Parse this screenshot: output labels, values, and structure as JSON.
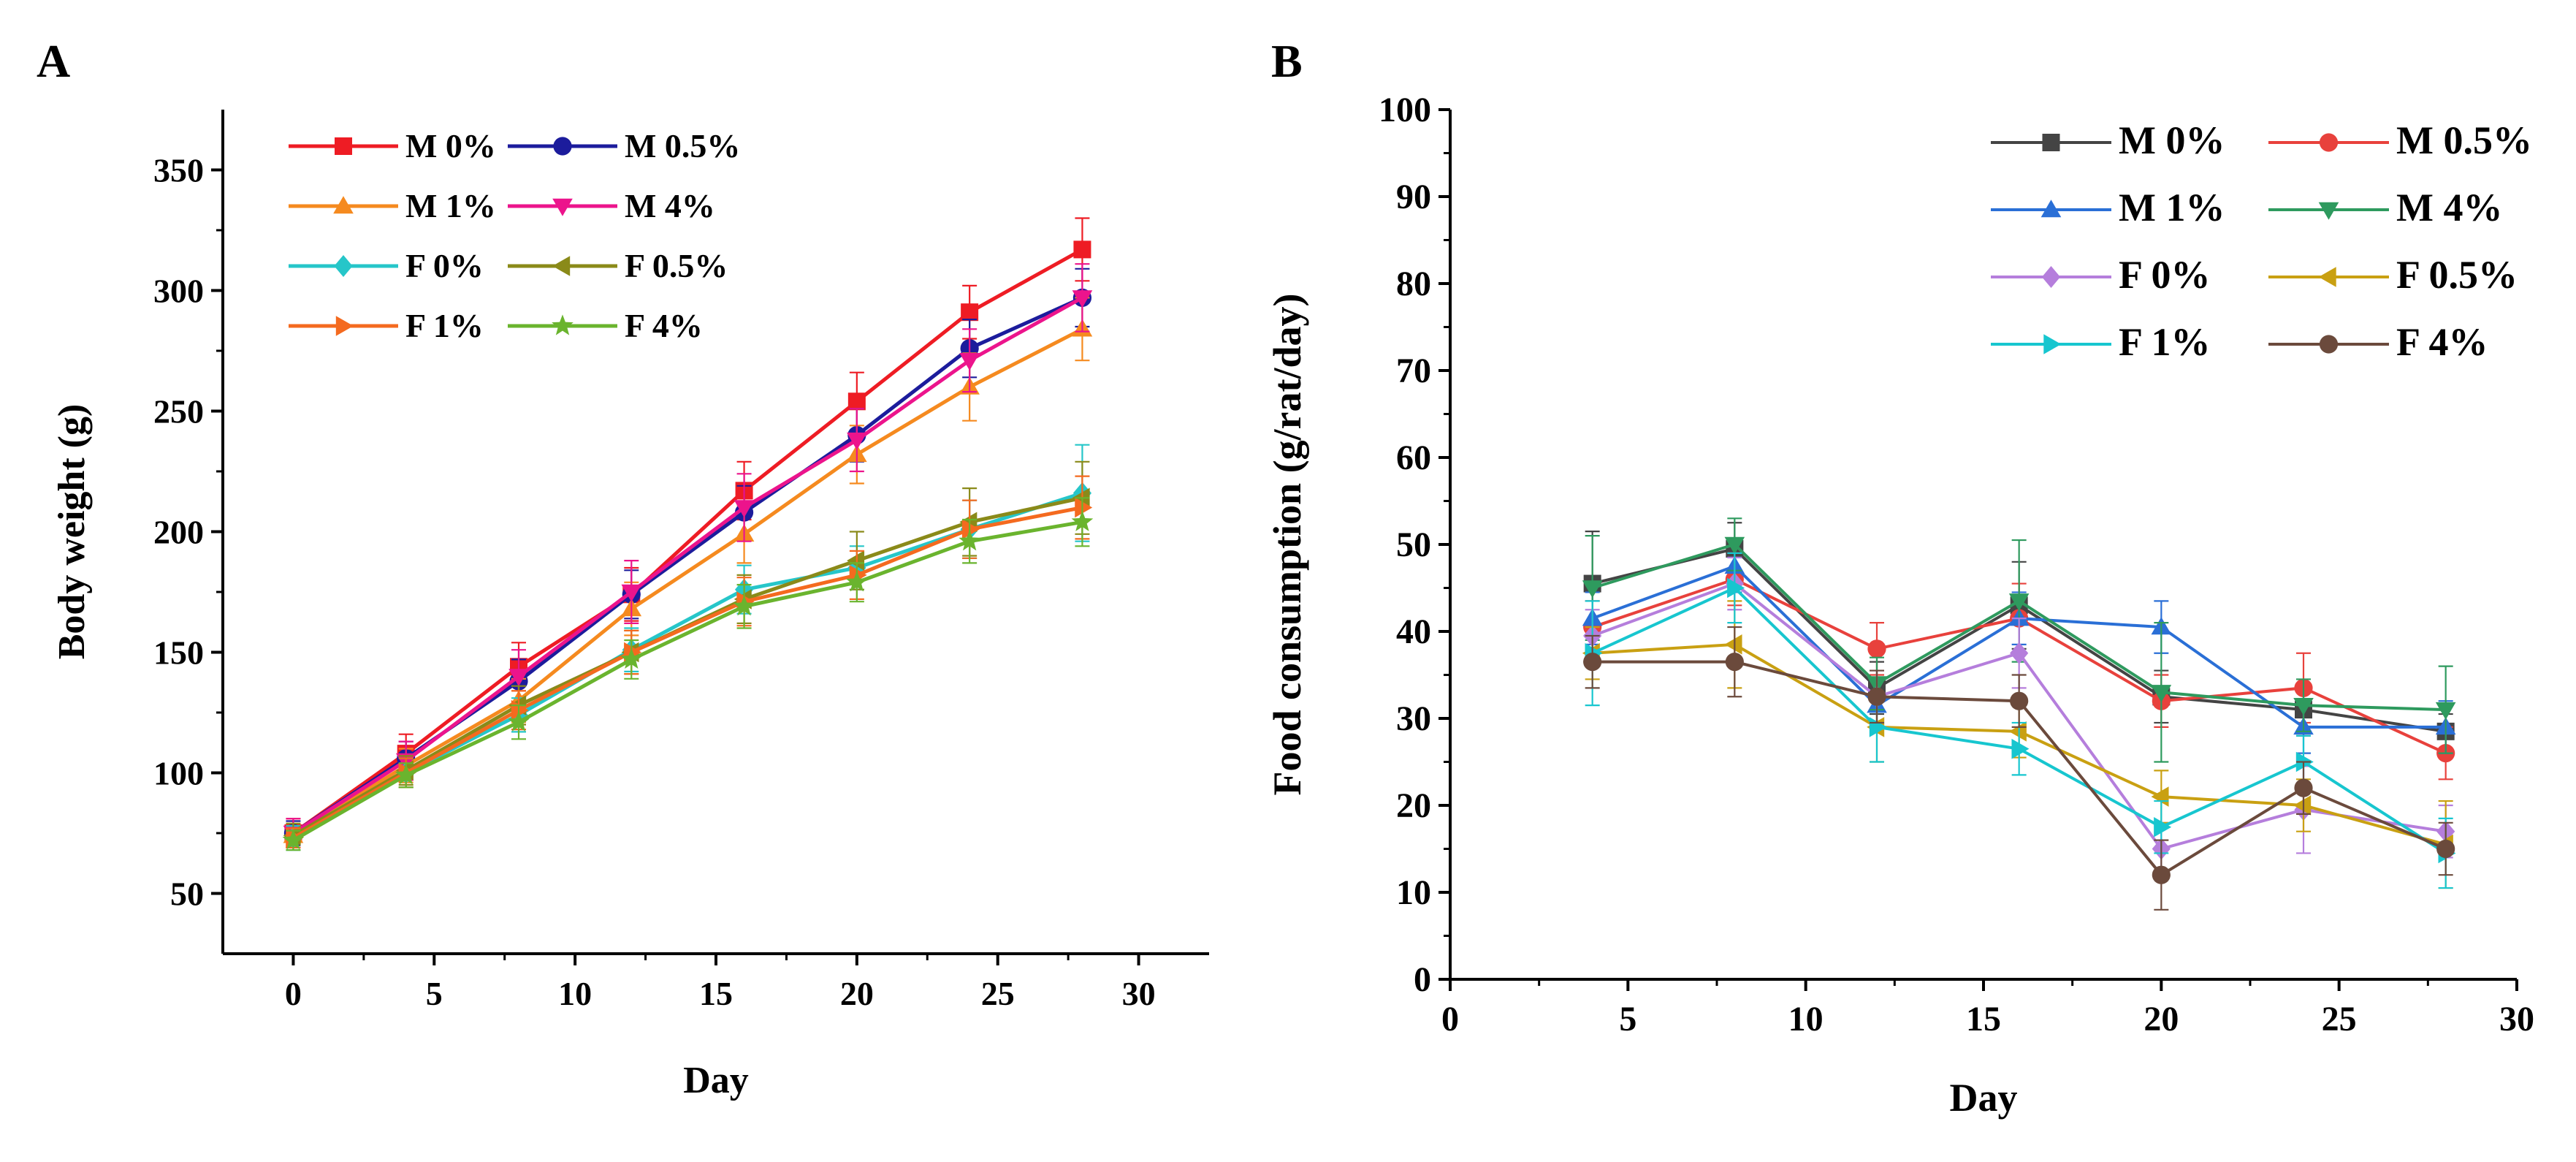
{
  "chart_data": [
    {
      "panel_label": "A",
      "type": "line",
      "title": "",
      "xlabel": "Day",
      "ylabel": "Body weight (g)",
      "xlim": [
        -2.5,
        32.5
      ],
      "ylim": [
        25,
        375
      ],
      "xticks": [
        0,
        5,
        10,
        15,
        20,
        25,
        30
      ],
      "yticks": [
        50,
        100,
        150,
        200,
        250,
        300,
        350
      ],
      "grid": false,
      "legend_position": "top-left",
      "x": [
        0,
        4,
        8,
        12,
        16,
        20,
        24,
        28
      ],
      "series": [
        {
          "name": "M 0%",
          "color": "#ee1c24",
          "marker": "square",
          "values": [
            75,
            108,
            144,
            174,
            217,
            254,
            291,
            317
          ],
          "err": [
            6,
            8,
            10,
            11,
            12,
            12,
            11,
            13
          ]
        },
        {
          "name": "M 0.5%",
          "color": "#1c1c9c",
          "marker": "circle",
          "values": [
            75,
            106,
            138,
            174,
            208,
            240,
            276,
            297
          ],
          "err": [
            5,
            7,
            9,
            10,
            11,
            11,
            12,
            12
          ]
        },
        {
          "name": "M 1%",
          "color": "#f58a1f",
          "marker": "triangle-up",
          "values": [
            74,
            103,
            130,
            168,
            199,
            232,
            260,
            284
          ],
          "err": [
            5,
            7,
            9,
            11,
            12,
            12,
            14,
            13
          ]
        },
        {
          "name": "M 4%",
          "color": "#ec148c",
          "marker": "triangle-down",
          "values": [
            75,
            105,
            140,
            175,
            210,
            238,
            271,
            297
          ],
          "err": [
            6,
            8,
            11,
            13,
            14,
            13,
            13,
            14
          ]
        },
        {
          "name": "F 0%",
          "color": "#26c6c9",
          "marker": "diamond",
          "values": [
            73,
            100,
            124,
            151,
            176,
            185,
            201,
            216
          ],
          "err": [
            5,
            6,
            7,
            9,
            10,
            9,
            12,
            20
          ]
        },
        {
          "name": "F 0.5%",
          "color": "#8a8a19",
          "marker": "triangle-left",
          "values": [
            74,
            101,
            128,
            150,
            172,
            188,
            204,
            214
          ],
          "err": [
            5,
            6,
            8,
            9,
            10,
            12,
            14,
            15
          ]
        },
        {
          "name": "F 1%",
          "color": "#f46a1f",
          "marker": "triangle-right",
          "values": [
            73,
            100,
            126,
            150,
            171,
            182,
            201,
            210
          ],
          "err": [
            4,
            6,
            8,
            9,
            10,
            10,
            12,
            13
          ]
        },
        {
          "name": "F 4%",
          "color": "#6ab42e",
          "marker": "star",
          "values": [
            72,
            99,
            121,
            147,
            169,
            179,
            196,
            204
          ],
          "err": [
            4,
            5,
            7,
            8,
            9,
            8,
            9,
            10
          ]
        }
      ]
    },
    {
      "panel_label": "B",
      "type": "line",
      "title": "",
      "xlabel": "Day",
      "ylabel": "Food consumption (g/rat/day)",
      "xlim": [
        0,
        30
      ],
      "ylim": [
        0,
        100
      ],
      "xticks": [
        0,
        5,
        10,
        15,
        20,
        25,
        30
      ],
      "yticks": [
        0,
        10,
        20,
        30,
        40,
        50,
        60,
        70,
        80,
        90,
        100
      ],
      "grid": false,
      "legend_position": "top-right",
      "x": [
        4,
        8,
        12,
        16,
        20,
        24,
        28
      ],
      "series": [
        {
          "name": "M 0%",
          "color": "#444444",
          "marker": "square",
          "values": [
            45.5,
            49.5,
            33.5,
            43.0,
            32.5,
            31.0,
            28.5
          ],
          "err": [
            6,
            3,
            3,
            5,
            3,
            3,
            2
          ]
        },
        {
          "name": "M 0.5%",
          "color": "#e8413c",
          "marker": "circle",
          "values": [
            40.5,
            46.0,
            38.0,
            41.5,
            32.0,
            33.5,
            26.0
          ],
          "err": [
            3,
            3,
            3,
            4,
            3,
            4,
            3
          ]
        },
        {
          "name": "M 1%",
          "color": "#2a6fd6",
          "marker": "triangle-up",
          "values": [
            41.5,
            47.5,
            31.5,
            41.5,
            40.5,
            29.0,
            29.0
          ],
          "err": [
            3,
            3,
            3,
            3,
            3,
            3,
            3
          ]
        },
        {
          "name": "M 4%",
          "color": "#2e9a5e",
          "marker": "triangle-down",
          "values": [
            45.0,
            50.0,
            34.0,
            43.5,
            33.0,
            31.5,
            31.0
          ],
          "err": [
            6,
            3,
            3,
            7,
            8,
            3,
            5
          ]
        },
        {
          "name": "F 0%",
          "color": "#b57edc",
          "marker": "diamond",
          "values": [
            39.5,
            45.5,
            32.5,
            37.5,
            15.0,
            19.5,
            17.0
          ],
          "err": [
            3,
            3,
            3,
            4,
            3,
            5,
            3
          ]
        },
        {
          "name": "F 0.5%",
          "color": "#c9a012",
          "marker": "triangle-left",
          "values": [
            37.5,
            38.5,
            29.0,
            28.5,
            21.0,
            20.0,
            15.5
          ],
          "err": [
            3,
            5,
            4,
            3,
            3,
            3,
            5
          ]
        },
        {
          "name": "F 1%",
          "color": "#17c6cf",
          "marker": "triangle-right",
          "values": [
            37.5,
            45.0,
            29.0,
            26.5,
            17.5,
            25.0,
            14.5
          ],
          "err": [
            6,
            4,
            4,
            3,
            3,
            3,
            4
          ]
        },
        {
          "name": "F 4%",
          "color": "#6b4a3c",
          "marker": "circle",
          "values": [
            36.5,
            36.5,
            32.5,
            32.0,
            12.0,
            22.0,
            15.0
          ],
          "err": [
            3,
            4,
            3,
            3,
            4,
            3,
            3
          ]
        }
      ]
    }
  ]
}
